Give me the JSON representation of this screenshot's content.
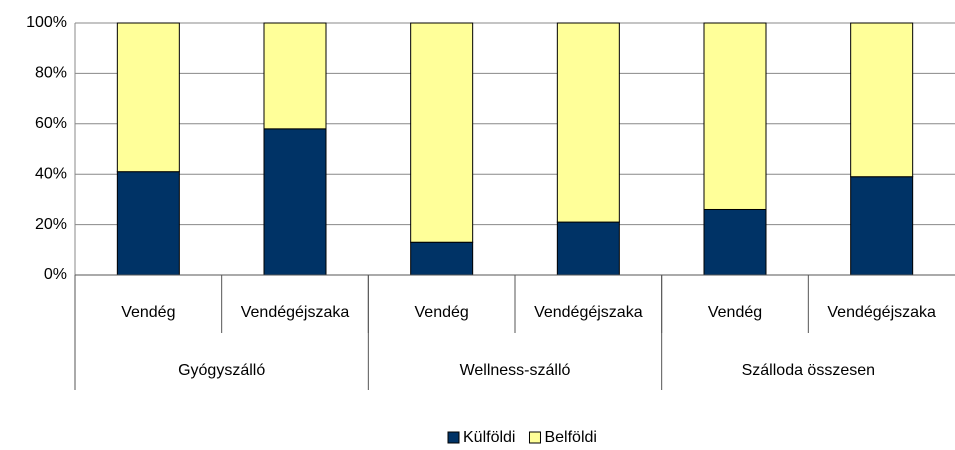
{
  "chart_data": {
    "type": "stacked_bar",
    "categories": [
      "Vendég",
      "Vendégéjszaka",
      "Vendég",
      "Vendégéjszaka",
      "Vendég",
      "Vendégéjszaka"
    ],
    "groups": [
      "Gyógyszálló",
      "Wellness-szálló",
      "Szálloda összesen"
    ],
    "series": [
      {
        "name": "Külföldi",
        "color": "#003366",
        "values": [
          41,
          58,
          13,
          21,
          26,
          39
        ]
      },
      {
        "name": "Belföldi",
        "color": "#ffff99",
        "values": [
          59,
          42,
          87,
          79,
          74,
          61
        ]
      }
    ],
    "ylim": [
      0,
      100
    ],
    "yticks": [
      {
        "value": 0,
        "label": "0%"
      },
      {
        "value": 20,
        "label": "20%"
      },
      {
        "value": 40,
        "label": "40%"
      },
      {
        "value": 60,
        "label": "60%"
      },
      {
        "value": 80,
        "label": "80%"
      },
      {
        "value": 100,
        "label": "100%"
      }
    ],
    "grid": true,
    "legend": "bottom"
  }
}
